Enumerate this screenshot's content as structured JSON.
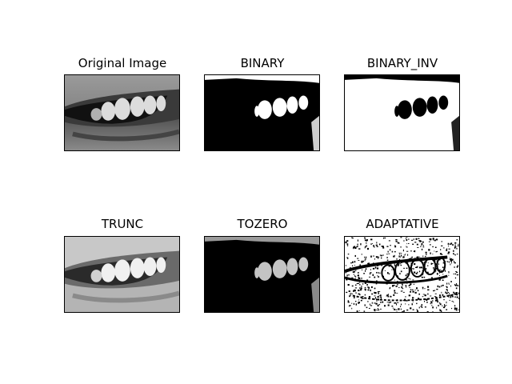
{
  "figure": {
    "panels": [
      {
        "title": "Original Image",
        "kind": "original"
      },
      {
        "title": "BINARY",
        "kind": "binary"
      },
      {
        "title": "BINARY_INV",
        "kind": "binary_inv"
      },
      {
        "title": "TRUNC",
        "kind": "trunc"
      },
      {
        "title": "TOZERO",
        "kind": "tozero"
      },
      {
        "title": "ADAPTATIVE",
        "kind": "adaptive"
      }
    ]
  }
}
